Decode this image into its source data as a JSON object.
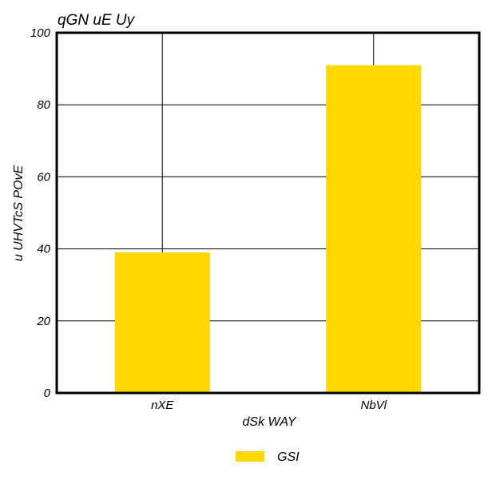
{
  "chart_data": {
    "type": "bar",
    "title": "qGN uE Uy",
    "xlabel": "dSk WAY",
    "ylabel": "u  UHVTcS POvE",
    "categories": [
      "nXE",
      "NbVl"
    ],
    "series": [
      {
        "name": "GSI",
        "values": [
          39,
          91
        ],
        "color": "#FFD800"
      }
    ],
    "ylim": [
      0,
      100
    ],
    "yticks": [
      0,
      20,
      40,
      60,
      80,
      100
    ],
    "grid": true,
    "legend_position": "bottom-center"
  }
}
